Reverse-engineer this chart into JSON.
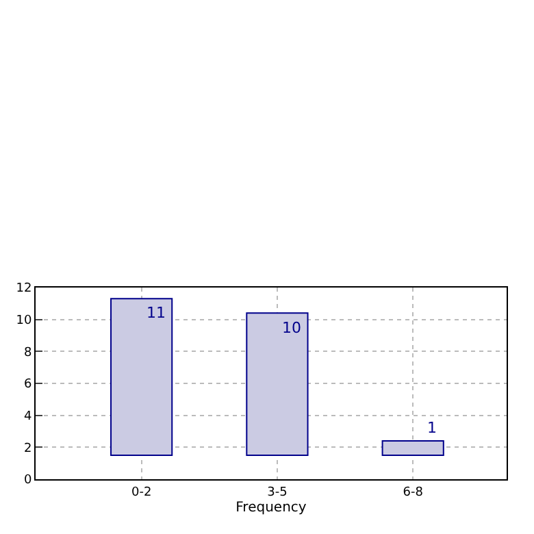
{
  "chart_data": {
    "type": "bar",
    "xlabel": "Frequency",
    "categories": [
      "0-2",
      "3-5",
      "6-8"
    ],
    "base": [
      1.5,
      1.5,
      1.5
    ],
    "values": [
      9.8,
      8.9,
      0.9
    ],
    "value_labels": [
      "11",
      "10",
      "1"
    ],
    "color": "#cbcbe3",
    "ylim": [
      0,
      12
    ],
    "yticks": [
      0,
      2,
      4,
      6,
      8,
      10,
      12
    ],
    "grid": true
  }
}
